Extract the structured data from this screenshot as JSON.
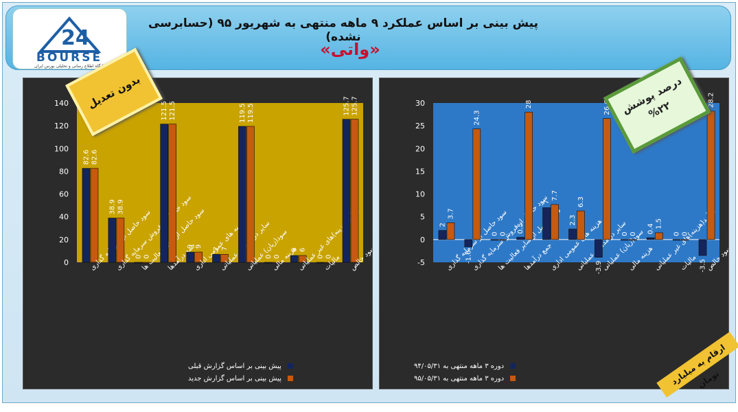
{
  "header": {
    "title": "پیش بینی بر اساس عملکرد ۹ ماهه منتهی به شهریور ۹۵ (حسابرسی نشده)",
    "company": "«واتی»",
    "logo_text": "BOURSE",
    "logo_sub": "پایگاه اطلاع رسانی و تحلیلی بورس ایران"
  },
  "badges": {
    "left": "بدون تعدیل",
    "right_label": "درصد پوشش",
    "right_value": "%۲۲",
    "units": "ارقام به میلیارد تومان"
  },
  "colors": {
    "left_plot_bg": "#c9a300",
    "right_plot_bg": "#2e79c7",
    "series_prev": "#14255e",
    "series_new": "#c55a11",
    "panel_bg": "#2b2b2b"
  },
  "chart_data": [
    {
      "type": "bar",
      "categories": [
        "سود حاصل از سرمایه گذاری",
        "سود حاصل از فروش سرمایه گذاری",
        "سود حاصل از سایر فعالیت ها",
        "جمع درآمدها",
        "هزینه های عمومی اداری",
        "سایر درآمدهای عملیاتی",
        "سود(زیان) عملیاتی",
        "هزینه مالی",
        "درآمد(هزینه)های غیر عملیاتی",
        "مالیات",
        "سود خالص"
      ],
      "series": [
        {
          "name": "پیش بینی بر اساس گزارش قبلی",
          "values": [
            82.6,
            38.9,
            0,
            121.5,
            9,
            7,
            119.5,
            0,
            6,
            0,
            125.7
          ]
        },
        {
          "name": "پیش بینی بر اساس گزارش جدید",
          "values": [
            82.6,
            38.9,
            0,
            121.5,
            9,
            7,
            119.5,
            0,
            6,
            0,
            125.7
          ]
        }
      ],
      "yticks": [
        "0",
        "20",
        "40",
        "60",
        "80",
        "100",
        "120",
        "140"
      ],
      "ylim": [
        0,
        140
      ],
      "grid": false,
      "legend_position": "bottom"
    },
    {
      "type": "bar",
      "categories": [
        "سود حاصل از سرمایه گذاری",
        "سود حاصل از فروش سرمایه گذاری",
        "سود حاصل از سایر فعالیت ها",
        "جمع درآمدها",
        "هزینه های عمومی اداری",
        "سایر درآمدهای عملیاتی",
        "سود(زیان) عملیاتی",
        "هزینه مالی",
        "درآمد(هزینه)های غیر عملیاتی",
        "مالیات",
        "سود خالص"
      ],
      "series": [
        {
          "name": "دوره ۳ ماهه منتهی به ۹۴/۰۵/۳۱",
          "values": [
            2,
            -1.6,
            0,
            0.5,
            7,
            2.3,
            -3.9,
            0,
            0.4,
            0,
            -3.5
          ]
        },
        {
          "name": "دوره ۳ ماهه منتهی به ۹۵/۰۵/۳۱",
          "values": [
            3.7,
            24.3,
            0,
            28,
            7.7,
            6.3,
            26.6,
            0,
            1.5,
            0,
            28.2
          ]
        }
      ],
      "yticks": [
        "-5",
        "0",
        "5",
        "10",
        "15",
        "20",
        "25",
        "30"
      ],
      "ylim": [
        -5,
        30
      ],
      "grid": false,
      "legend_position": "bottom"
    }
  ]
}
